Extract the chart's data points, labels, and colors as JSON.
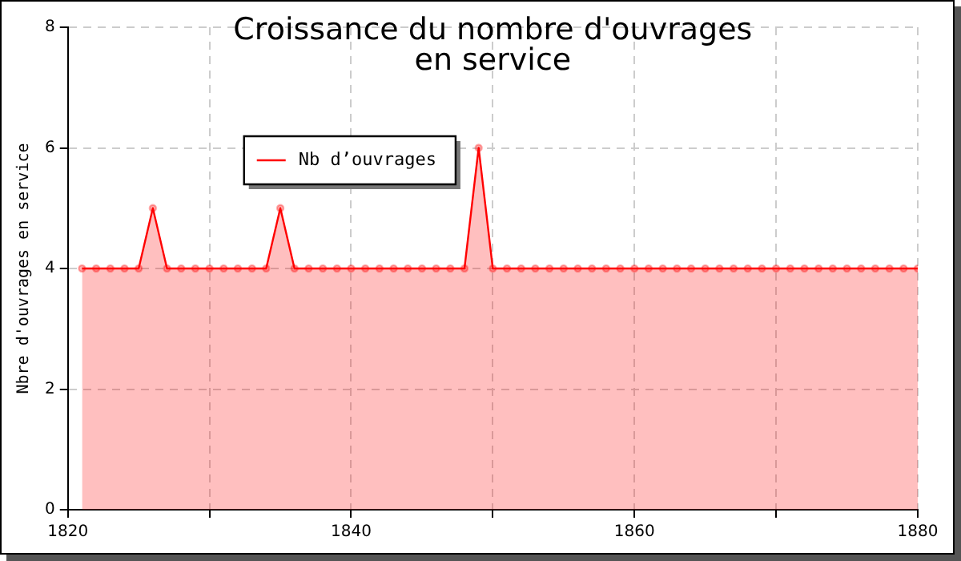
{
  "chart_data": {
    "type": "area",
    "title": "Croissance du nombre d'ouvrages\nen service",
    "ylabel": "Nbre d'ouvrages en service",
    "x": [
      1821,
      1822,
      1823,
      1824,
      1825,
      1826,
      1827,
      1828,
      1829,
      1830,
      1831,
      1832,
      1833,
      1834,
      1835,
      1836,
      1837,
      1838,
      1839,
      1840,
      1841,
      1842,
      1843,
      1844,
      1845,
      1846,
      1847,
      1848,
      1849,
      1850,
      1851,
      1852,
      1853,
      1854,
      1855,
      1856,
      1857,
      1858,
      1859,
      1860,
      1861,
      1862,
      1863,
      1864,
      1865,
      1866,
      1867,
      1868,
      1869,
      1870,
      1871,
      1872,
      1873,
      1874,
      1875,
      1876,
      1877,
      1878,
      1879,
      1880
    ],
    "series": [
      {
        "name": "Nb d’ouvrages",
        "color": "#ff0000",
        "values": [
          4,
          4,
          4,
          4,
          4,
          5,
          4,
          4,
          4,
          4,
          4,
          4,
          4,
          4,
          5,
          4,
          4,
          4,
          4,
          4,
          4,
          4,
          4,
          4,
          4,
          4,
          4,
          4,
          6,
          4,
          4,
          4,
          4,
          4,
          4,
          4,
          4,
          4,
          4,
          4,
          4,
          4,
          4,
          4,
          4,
          4,
          4,
          4,
          4,
          4,
          4,
          4,
          4,
          4,
          4,
          4,
          4,
          4,
          4,
          4
        ]
      }
    ],
    "xlim": [
      1820,
      1880
    ],
    "xticks": [
      1820,
      {
        "value": 1830,
        "label": null
      },
      1840,
      {
        "value": 1850,
        "label": null
      },
      1860,
      {
        "value": 1870,
        "label": null
      },
      1880
    ],
    "ylim": [
      0,
      8
    ],
    "yticks": [
      0,
      2,
      4,
      6,
      8
    ],
    "grid": true,
    "legend": "top left",
    "marker": "circle",
    "line_style": "solid"
  }
}
